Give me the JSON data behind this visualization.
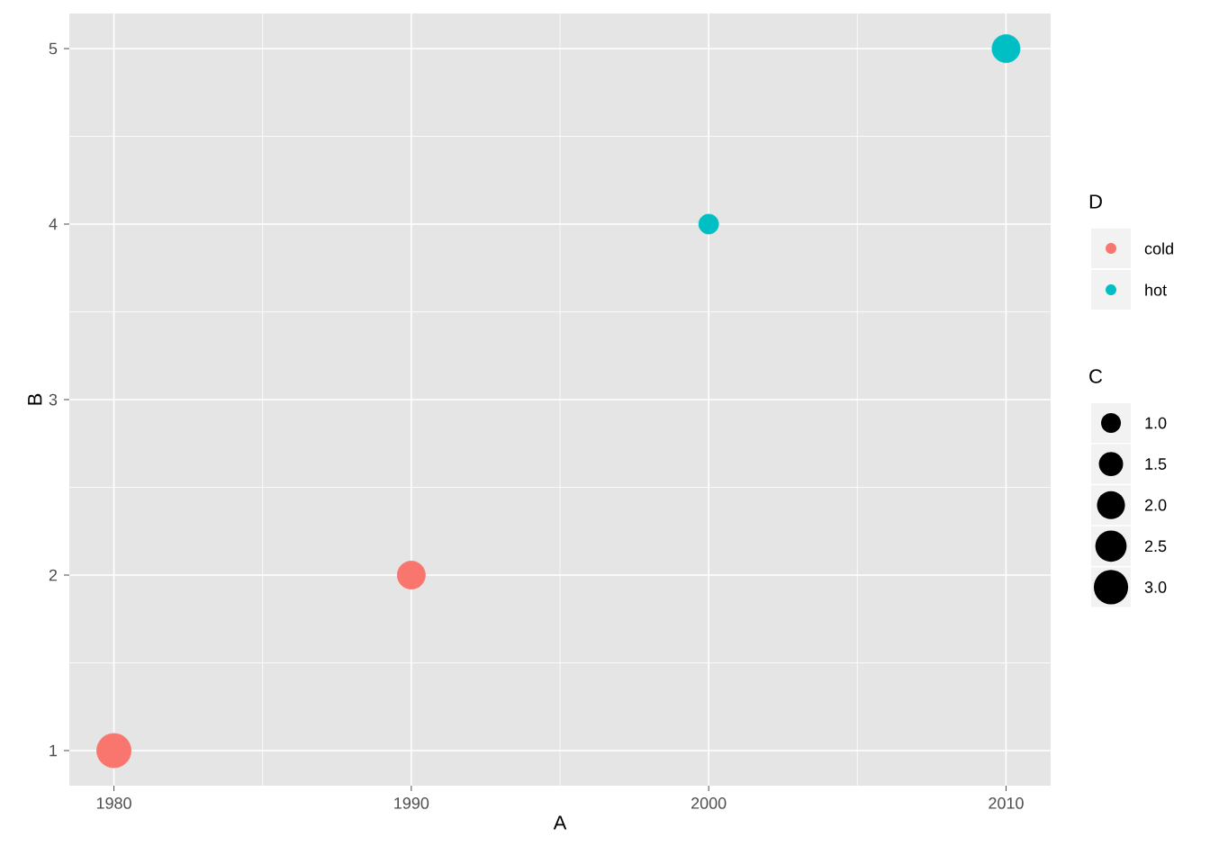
{
  "chart_data": {
    "type": "bubble",
    "xlabel": "A",
    "ylabel": "B",
    "legend_title": "D",
    "annotations": [
      "C"
    ],
    "series": [
      {
        "name": "cold",
        "color": "#f8766d",
        "x": [
          1980,
          1990
        ],
        "values": [
          1,
          2
        ],
        "sizes": [
          3,
          2
        ]
      },
      {
        "name": "hot",
        "color": "#00bfc4",
        "x": [
          2000,
          2010
        ],
        "values": [
          4,
          5
        ],
        "sizes": [
          1,
          2
        ]
      }
    ],
    "size_legend": [
      {
        "value": 1,
        "label": "1.0"
      },
      {
        "value": 1.5,
        "label": "1.5"
      },
      {
        "value": 2,
        "label": "2.0"
      },
      {
        "value": 2.5,
        "label": "2.5"
      },
      {
        "value": 3,
        "label": "3.0"
      }
    ],
    "xlim": [
      1978.5,
      2011.5
    ],
    "ylim": [
      0.8,
      5.2
    ],
    "xticks": [
      1980,
      1990,
      2000,
      2010
    ],
    "yticks": [
      1,
      2,
      3,
      4,
      5
    ],
    "grid": true,
    "legend": "right"
  }
}
